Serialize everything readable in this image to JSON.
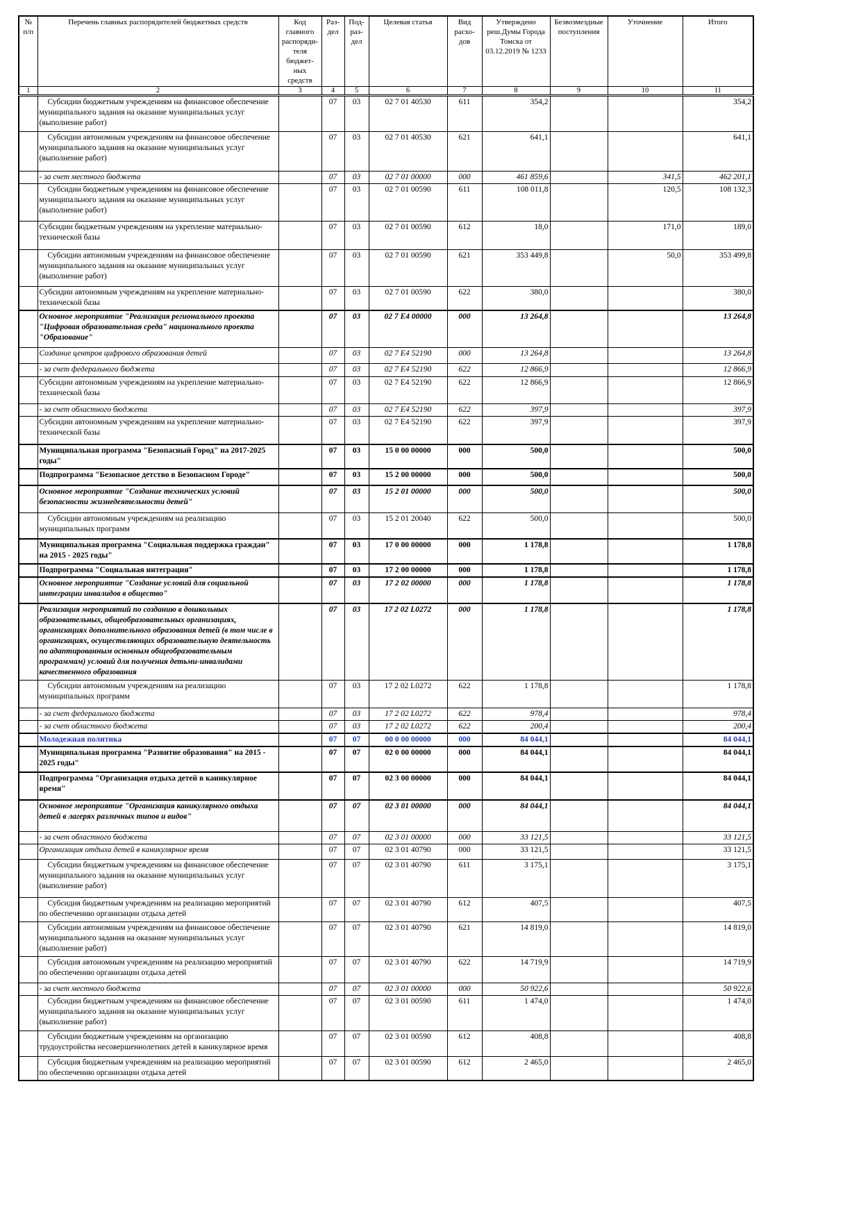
{
  "headers": [
    "№ п/п",
    "Перечень главных распорядителей бюджетных средств",
    "Код главного распоряди-теля бюджет-ных средств",
    "Раз-дел",
    "Под-раз-дел",
    "Целевая статья",
    "Вид расхо-дов",
    "Утверждено реш.Думы Города Томска от 03.12.2019 № 1233",
    "Безвозмездные поступления",
    "Уточнение",
    "Итого"
  ],
  "col_numbers": [
    "1",
    "2",
    "3",
    "4",
    "5",
    "6",
    "7",
    "8",
    "9",
    "10",
    "11"
  ],
  "rows": [
    {
      "style": "normal",
      "indent": true,
      "name": "Субсидии бюджетным учреждениям на финансовое обеспечение муниципального задания на оказание муниципальных услуг (выполнение работ)",
      "rz": "07",
      "prz": "03",
      "csr": "02 7 01 40530",
      "vr": "611",
      "approved": "354,2",
      "free": "",
      "refine": "",
      "total": "354,2"
    },
    {
      "style": "normal",
      "indent": true,
      "name": "Субсидии автономным учреждениям на финансовое обеспечение муниципального задания на оказание муниципальных услуг (выполнение работ)",
      "rz": "07",
      "prz": "03",
      "csr": "02 7 01 40530",
      "vr": "621",
      "approved": "641,1",
      "free": "",
      "refine": "",
      "total": "641,1"
    },
    {
      "style": "italic",
      "indent": false,
      "name": " - за счет местного бюджета",
      "rz": "07",
      "prz": "03",
      "csr": "02 7 01 00000",
      "vr": "000",
      "approved": "461 859,6",
      "free": "",
      "refine": "341,5",
      "total": "462 201,1"
    },
    {
      "style": "normal",
      "indent": true,
      "name": "Субсидии бюджетным учреждениям на финансовое обеспечение муниципального задания на оказание муниципальных услуг (выполнение работ)",
      "rz": "07",
      "prz": "03",
      "csr": "02 7 01 00590",
      "vr": "611",
      "approved": "108 011,8",
      "free": "",
      "refine": "120,5",
      "total": "108 132,3"
    },
    {
      "style": "normal",
      "indent": false,
      "name": "Субсидии бюджетным учреждениям на укрепление материально-технической базы",
      "rz": "07",
      "prz": "03",
      "csr": "02 7 01 00590",
      "vr": "612",
      "approved": "18,0",
      "free": "",
      "refine": "171,0",
      "total": "189,0"
    },
    {
      "style": "normal",
      "indent": true,
      "name": "Субсидии автономным учреждениям на финансовое обеспечение муниципального задания на оказание муниципальных услуг (выполнение работ)",
      "rz": "07",
      "prz": "03",
      "csr": "02 7 01 00590",
      "vr": "621",
      "approved": "353 449,8",
      "free": "",
      "refine": "50,0",
      "total": "353 499,8"
    },
    {
      "style": "normal",
      "indent": false,
      "name": "Субсидии автономным учреждениям на укрепление материально-технической базы",
      "rz": "07",
      "prz": "03",
      "csr": "02 7 01 00590",
      "vr": "622",
      "approved": "380,0",
      "free": "",
      "refine": "",
      "total": "380,0"
    },
    {
      "style": "bold-italic",
      "indent": false,
      "name": "Основное мероприятие \"Реализация регионального проекта \"Цифровая образовательная среда\" национального проекта \"Образование\"",
      "rz": "07",
      "prz": "03",
      "csr": "02 7 E4 00000",
      "vr": "000",
      "approved": "13 264,8",
      "free": "",
      "refine": "",
      "total": "13 264,8"
    },
    {
      "style": "italic",
      "indent": false,
      "name": "Создание центров цифрового образования детей",
      "rz": "07",
      "prz": "03",
      "csr": "02 7 E4 52190",
      "vr": "000",
      "approved": "13 264,8",
      "free": "",
      "refine": "",
      "total": "13 264,8"
    },
    {
      "style": "italic",
      "indent": false,
      "name": " - за счет федерального бюджета",
      "rz": "07",
      "prz": "03",
      "csr": "02 7 E4 52190",
      "vr": "622",
      "approved": "12 866,9",
      "free": "",
      "refine": "",
      "total": "12 866,9"
    },
    {
      "style": "normal",
      "indent": false,
      "name": "Субсидии автономным учреждениям на укрепление материально-технической базы",
      "rz": "07",
      "prz": "03",
      "csr": "02 7 E4 52190",
      "vr": "622",
      "approved": "12 866,9",
      "free": "",
      "refine": "",
      "total": "12 866,9"
    },
    {
      "style": "italic",
      "indent": false,
      "name": " - за счет областного бюджета",
      "rz": "07",
      "prz": "03",
      "csr": "02 7 E4 52190",
      "vr": "622",
      "approved": "397,9",
      "free": "",
      "refine": "",
      "total": "397,9"
    },
    {
      "style": "normal",
      "indent": false,
      "name": "Субсидии автономным учреждениям на укрепление материально-технической базы",
      "rz": "07",
      "prz": "03",
      "csr": "02 7 E4 52190",
      "vr": "622",
      "approved": "397,9",
      "free": "",
      "refine": "",
      "total": "397,9"
    },
    {
      "style": "bold",
      "indent": false,
      "name": "Муниципальная программа \"Безопасный Город\" на 2017-2025 годы\"",
      "rz": "07",
      "prz": "03",
      "csr": "15 0 00 00000",
      "vr": "000",
      "approved": "500,0",
      "free": "",
      "refine": "",
      "total": "500,0"
    },
    {
      "style": "bold",
      "indent": false,
      "name": "Подпрограмма \"Безопасное детство в Безопасном Городе\"",
      "rz": "07",
      "prz": "03",
      "csr": "15 2 00 00000",
      "vr": "000",
      "approved": "500,0",
      "free": "",
      "refine": "",
      "total": "500,0"
    },
    {
      "style": "bold-italic",
      "indent": false,
      "name": " Основное мероприятие \"Создание технических условий безопасности жизнедеятельности детей\"",
      "rz": "07",
      "prz": "03",
      "csr": "15 2 01 00000",
      "vr": "000",
      "approved": "500,0",
      "free": "",
      "refine": "",
      "total": "500,0"
    },
    {
      "style": "normal",
      "indent": true,
      "name": "Субсидии автономным учреждениям на реализацию муниципальных программ",
      "rz": "07",
      "prz": "03",
      "csr": "15 2 01 20040",
      "vr": "622",
      "approved": "500,0",
      "free": "",
      "refine": "",
      "total": "500,0"
    },
    {
      "style": "bold",
      "indent": false,
      "name": "Муниципальная программа \"Социальная поддержка граждан\" на 2015 - 2025 годы\"",
      "rz": "07",
      "prz": "03",
      "csr": "17 0 00 00000",
      "vr": "000",
      "approved": "1 178,8",
      "free": "",
      "refine": "",
      "total": "1 178,8"
    },
    {
      "style": "bold",
      "indent": false,
      "name": "Подпрограмма \"Социальная интеграция\"",
      "rz": "07",
      "prz": "03",
      "csr": "17 2 00 00000",
      "vr": "000",
      "approved": "1 178,8",
      "free": "",
      "refine": "",
      "total": "1 178,8"
    },
    {
      "style": "bold-italic",
      "indent": false,
      "name": "  Основное мероприятие \"Создание условий для социальной интеграции инвалидов в общество\"",
      "rz": "07",
      "prz": "03",
      "csr": "17 2 02 00000",
      "vr": "000",
      "approved": "1 178,8",
      "free": "",
      "refine": "",
      "total": "1 178,8"
    },
    {
      "style": "bold-italic",
      "indent": false,
      "name": "Реализация мероприятий по созданию в дошкольных образовательных, общеобразовательных организациях, организациях дополнительного образования детей (в том числе в организациях, осуществляющих образовательную деятельность по адаптированным основным общеобразовательным программам) условий для получения детьми-инвалидами качественного образования",
      "rz": "07",
      "prz": "03",
      "csr": "17 2 02 L0272",
      "vr": "000",
      "approved": "1 178,8",
      "free": "",
      "refine": "",
      "total": "1 178,8"
    },
    {
      "style": "normal",
      "indent": true,
      "name": "Субсидии автономным учреждениям на реализацию муниципальных программ",
      "rz": "07",
      "prz": "03",
      "csr": "17 2 02 L0272",
      "vr": "622",
      "approved": "1 178,8",
      "free": "",
      "refine": "",
      "total": "1 178,8"
    },
    {
      "style": "italic",
      "indent": false,
      "name": " - за счет федерального бюджета",
      "rz": "07",
      "prz": "03",
      "csr": "17 2 02 L0272",
      "vr": "622",
      "approved": "978,4",
      "free": "",
      "refine": "",
      "total": "978,4"
    },
    {
      "style": "italic",
      "indent": false,
      "name": " - за счет областного бюджета",
      "rz": "07",
      "prz": "03",
      "csr": "17 2 02 L0272",
      "vr": "622",
      "approved": "200,4",
      "free": "",
      "refine": "",
      "total": "200,4"
    },
    {
      "style": "blue",
      "indent": false,
      "name": "Молодежная политика",
      "rz": "07",
      "prz": "07",
      "csr": "00 0 00 00000",
      "vr": "000",
      "approved": "84 044,1",
      "free": "",
      "refine": "",
      "total": "84 044,1"
    },
    {
      "style": "bold",
      "indent": false,
      "name": "Муниципальная программа \"Развитие образования\" на 2015 - 2025 годы\"",
      "rz": "07",
      "prz": "07",
      "csr": "02 0 00 00000",
      "vr": "000",
      "approved": "84 044,1",
      "free": "",
      "refine": "",
      "total": "84 044,1"
    },
    {
      "style": "bold",
      "indent": false,
      "name": "Подпрограмма \"Организация отдыха детей в каникулярное время\"",
      "rz": "07",
      "prz": "07",
      "csr": "02 3 00 00000",
      "vr": "000",
      "approved": "84 044,1",
      "free": "",
      "refine": "",
      "total": "84 044,1"
    },
    {
      "style": "bold-italic",
      "indent": false,
      "name": " Основное мероприятие \"Организация каникулярного отдыха детей в лагерях различных типов и видов\"",
      "rz": "07",
      "prz": "07",
      "csr": "02 3 01 00000",
      "vr": "000",
      "approved": "84 044,1",
      "free": "",
      "refine": "",
      "total": "84 044,1"
    },
    {
      "style": "italic",
      "indent": false,
      "name": " - за счет областного бюджета",
      "rz": "07",
      "prz": "07",
      "csr": "02 3 01 00000",
      "vr": "000",
      "approved": "33 121,5",
      "free": "",
      "refine": "",
      "total": "33 121,5"
    },
    {
      "style": "italic-name",
      "indent": false,
      "name": "Организация отдыха детей в каникулярное время",
      "rz": "07",
      "prz": "07",
      "csr": "02 3 01 40790",
      "vr": "000",
      "approved": "33 121,5",
      "free": "",
      "refine": "",
      "total": "33 121,5"
    },
    {
      "style": "normal",
      "indent": true,
      "name": "Субсидии бюджетным учреждениям на финансовое обеспечение муниципального задания на оказание муниципальных услуг (выполнение работ)",
      "rz": "07",
      "prz": "07",
      "csr": "02 3 01 40790",
      "vr": "611",
      "approved": "3 175,1",
      "free": "",
      "refine": "",
      "total": "3 175,1"
    },
    {
      "style": "normal",
      "indent": true,
      "name": "Субсидия бюджетным учреждениям на реализацию мероприятий по обеспечению организации отдыха детей",
      "rz": "07",
      "prz": "07",
      "csr": "02 3 01 40790",
      "vr": "612",
      "approved": "407,5",
      "free": "",
      "refine": "",
      "total": "407,5"
    },
    {
      "style": "normal",
      "indent": true,
      "name": "Субсидии автономным учреждениям на финансовое обеспечение муниципального задания на оказание муниципальных услуг (выполнение работ)",
      "rz": "07",
      "prz": "07",
      "csr": "02 3 01 40790",
      "vr": "621",
      "approved": "14 819,0",
      "free": "",
      "refine": "",
      "total": "14 819,0"
    },
    {
      "style": "normal",
      "indent": true,
      "name": "Субсидия автономным учреждениям на реализацию мероприятий по обеспечению организации отдыха детей",
      "rz": "07",
      "prz": "07",
      "csr": "02 3 01 40790",
      "vr": "622",
      "approved": "14 719,9",
      "free": "",
      "refine": "",
      "total": "14 719,9"
    },
    {
      "style": "italic",
      "indent": false,
      "name": " - за счет местного бюджета",
      "rz": "07",
      "prz": "07",
      "csr": "02 3 01 00000",
      "vr": "000",
      "approved": "50 922,6",
      "free": "",
      "refine": "",
      "total": "50 922,6"
    },
    {
      "style": "normal",
      "indent": true,
      "name": "Субсидии бюджетным учреждениям на финансовое обеспечение муниципального задания на оказание муниципальных услуг (выполнение работ)",
      "rz": "07",
      "prz": "07",
      "csr": "02 3 01 00590",
      "vr": "611",
      "approved": "1 474,0",
      "free": "",
      "refine": "",
      "total": "1 474,0"
    },
    {
      "style": "normal",
      "indent": true,
      "name": "Субсидии бюджетным учреждениям на организацию трудоустройства несовершеннолетних детей в каникулярное время",
      "rz": "07",
      "prz": "07",
      "csr": "02 3 01 00590",
      "vr": "612",
      "approved": "408,8",
      "free": "",
      "refine": "",
      "total": "408,8"
    },
    {
      "style": "normal",
      "indent": true,
      "name": "Субсидия бюджетным учреждениям на реализацию мероприятий по обеспечению организации отдыха детей",
      "rz": "07",
      "prz": "07",
      "csr": "02 3 01 00590",
      "vr": "612",
      "approved": "2 465,0",
      "free": "",
      "refine": "",
      "total": "2 465,0"
    }
  ]
}
